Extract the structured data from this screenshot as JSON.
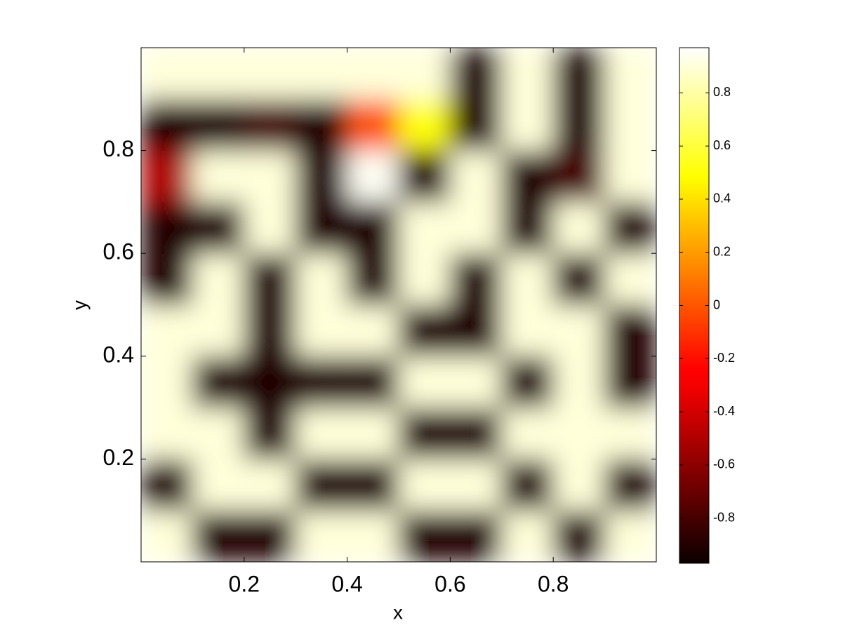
{
  "chart_data": {
    "type": "heatmap",
    "colormap": "hot",
    "x": [
      0.05,
      0.15,
      0.25,
      0.35,
      0.45,
      0.55,
      0.65,
      0.75,
      0.85,
      0.95
    ],
    "y": [
      0.05,
      0.15,
      0.25,
      0.35,
      0.45,
      0.55,
      0.65,
      0.75,
      0.85,
      0.95
    ],
    "z": [
      [
        0.9,
        -0.9,
        -0.9,
        0.9,
        0.9,
        -0.9,
        -0.9,
        0.9,
        -0.9,
        0.9
      ],
      [
        -0.9,
        0.9,
        0.9,
        -0.9,
        -0.9,
        0.9,
        0.9,
        -0.9,
        0.9,
        -0.9
      ],
      [
        0.9,
        0.9,
        -0.9,
        0.9,
        0.9,
        -0.9,
        -0.9,
        0.9,
        0.9,
        0.9
      ],
      [
        0.9,
        -0.9,
        -0.9,
        -0.9,
        -0.9,
        0.9,
        0.9,
        -0.9,
        0.9,
        -0.9
      ],
      [
        0.9,
        0.9,
        -0.9,
        0.9,
        0.9,
        -0.9,
        -0.9,
        0.9,
        0.9,
        -0.9
      ],
      [
        -0.9,
        0.9,
        -0.9,
        0.9,
        -0.9,
        0.9,
        -0.9,
        0.9,
        -0.9,
        0.9
      ],
      [
        -0.9,
        -0.9,
        0.9,
        -0.9,
        -0.9,
        0.9,
        0.9,
        -0.9,
        0.9,
        -0.9
      ],
      [
        -0.5,
        0.9,
        0.9,
        -0.9,
        0.95,
        -0.9,
        0.9,
        -0.9,
        -0.8,
        0.9
      ],
      [
        -0.9,
        -0.9,
        -0.8,
        -0.9,
        0.0,
        0.5,
        -0.9,
        0.9,
        -0.9,
        0.9
      ],
      [
        0.9,
        0.9,
        0.9,
        0.9,
        0.9,
        0.9,
        -0.9,
        0.9,
        -0.9,
        0.9
      ]
    ],
    "xlim": [
      0,
      1
    ],
    "ylim": [
      0,
      1
    ],
    "xticks": [
      0.2,
      0.4,
      0.6,
      0.8
    ],
    "yticks": [
      0.2,
      0.4,
      0.6,
      0.8
    ],
    "xlabel": "x",
    "ylabel": "y",
    "clim": [
      -0.97,
      0.97
    ],
    "cticks": [
      -0.8,
      -0.6,
      -0.4,
      -0.2,
      0,
      0.2,
      0.4,
      0.6,
      0.8
    ]
  }
}
